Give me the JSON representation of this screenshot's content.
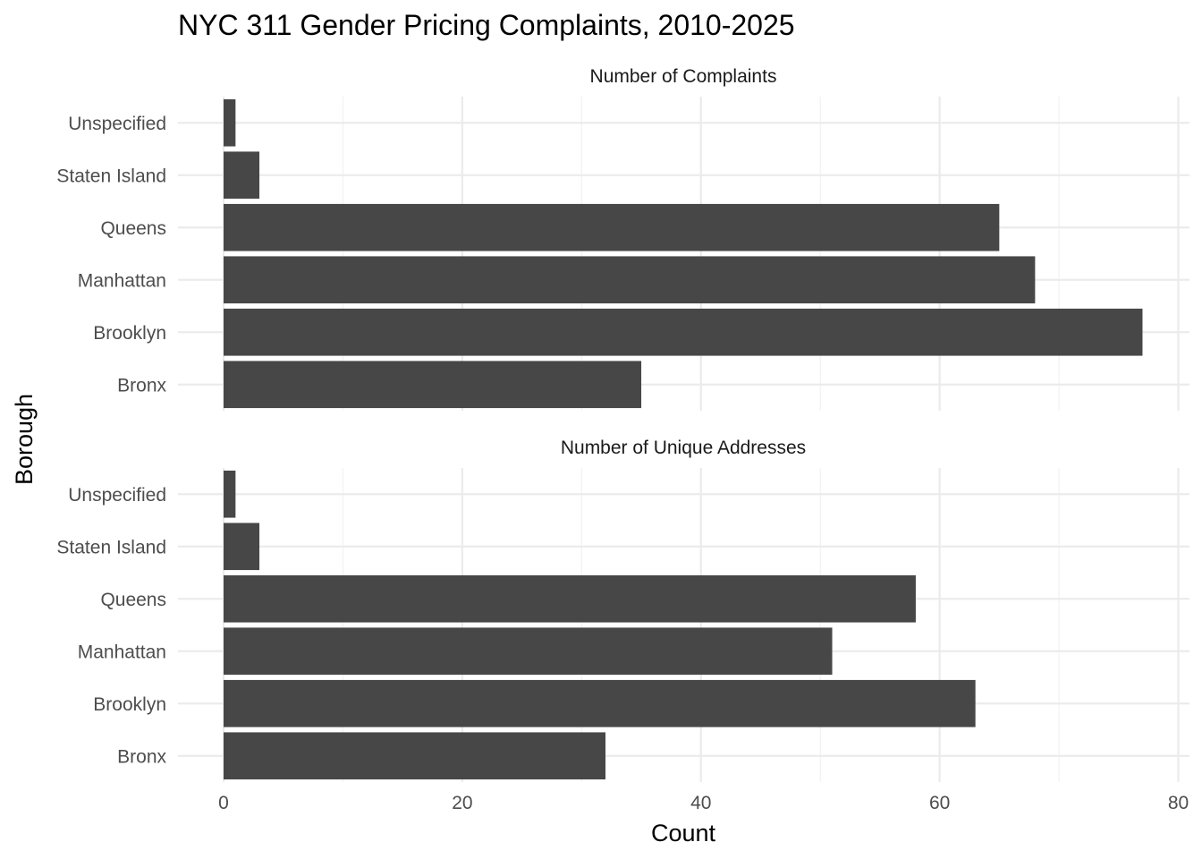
{
  "chart_data": {
    "type": "bar",
    "orientation": "horizontal",
    "title": "NYC 311 Gender Pricing Complaints, 2010-2025",
    "xlabel": "Count",
    "ylabel": "Borough",
    "xlim": [
      0,
      80
    ],
    "x_ticks": [
      0,
      20,
      40,
      60,
      80
    ],
    "x_tick_labels": [
      "0",
      "20",
      "40",
      "60",
      "80"
    ],
    "grid": true,
    "categories": [
      "Unspecified",
      "Staten Island",
      "Queens",
      "Manhattan",
      "Brooklyn",
      "Bronx"
    ],
    "bar_color": "#474747",
    "panels": [
      {
        "name": "Number of Complaints",
        "values": [
          1,
          3,
          65,
          68,
          77,
          35
        ]
      },
      {
        "name": "Number of Unique Addresses",
        "values": [
          1,
          3,
          58,
          51,
          63,
          32
        ]
      }
    ]
  }
}
